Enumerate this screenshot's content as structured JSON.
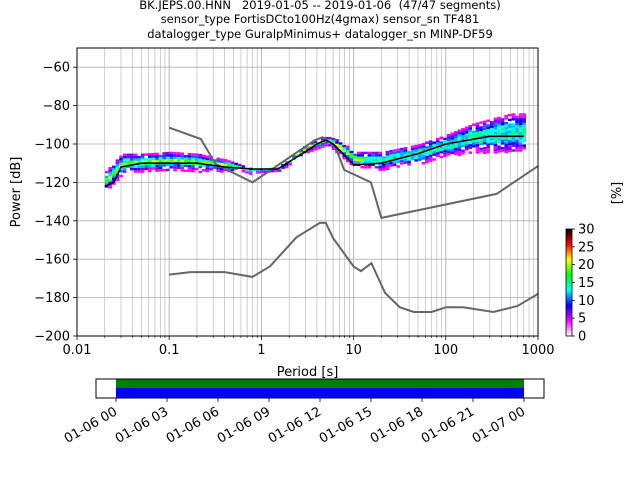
{
  "title_lines": [
    "BK.JEPS.00.HNN   2019-01-05 -- 2019-01-06  (47/47 segments)",
    "sensor_type FortisDCto100Hz(4gmax) sensor_sn TF481",
    "datalogger_type GuralpMinimus+ datalogger_sn MINP-DF59"
  ],
  "chart_data": {
    "type": "heatmap",
    "xlabel": "Period [s]",
    "ylabel": "Power [dB]",
    "x_scale": "log",
    "xlim": [
      0.01,
      1000
    ],
    "ylim": [
      -200,
      -50
    ],
    "x_ticks": [
      0.01,
      0.1,
      1,
      10,
      100,
      1000
    ],
    "x_tick_labels": [
      "0.01",
      "0.1",
      "1",
      "10",
      "100",
      "1000"
    ],
    "y_ticks": [
      -200,
      -180,
      -160,
      -140,
      -120,
      -100,
      -80,
      -60
    ],
    "y_tick_labels": [
      "−200",
      "−180",
      "−160",
      "−140",
      "−120",
      "−100",
      "−80",
      "−60"
    ],
    "grid": true,
    "colorbar": {
      "label": "[%]",
      "range": [
        0,
        30
      ],
      "ticks": [
        0,
        5,
        10,
        15,
        20,
        25,
        30
      ],
      "tick_labels": [
        "0",
        "5",
        "10",
        "15",
        "20",
        "25",
        "30"
      ],
      "colors": [
        "#ffffff",
        "#ff00ff",
        "#0000ff",
        "#00ffff",
        "#00ff00",
        "#ffff00",
        "#ff0000",
        "#000000"
      ]
    },
    "psd_band": [
      {
        "x": 0.02,
        "lo": -124,
        "hi": -114
      },
      {
        "x": 0.03,
        "lo": -116,
        "hi": -105
      },
      {
        "x": 0.05,
        "lo": -114,
        "hi": -105
      },
      {
        "x": 0.1,
        "lo": -114,
        "hi": -104
      },
      {
        "x": 0.2,
        "lo": -114,
        "hi": -105
      },
      {
        "x": 0.4,
        "lo": -114,
        "hi": -108
      },
      {
        "x": 0.8,
        "lo": -115,
        "hi": -113
      },
      {
        "x": 1.5,
        "lo": -114,
        "hi": -112
      },
      {
        "x": 3,
        "lo": -104,
        "hi": -100
      },
      {
        "x": 5,
        "lo": -100,
        "hi": -96
      },
      {
        "x": 7,
        "lo": -106,
        "hi": -98
      },
      {
        "x": 10,
        "lo": -112,
        "hi": -104
      },
      {
        "x": 20,
        "lo": -113,
        "hi": -104
      },
      {
        "x": 50,
        "lo": -110,
        "hi": -100
      },
      {
        "x": 100,
        "lo": -106,
        "hi": -95
      },
      {
        "x": 200,
        "lo": -104,
        "hi": -89
      },
      {
        "x": 500,
        "lo": -104,
        "hi": -84
      },
      {
        "x": 700,
        "lo": -104,
        "hi": -84
      }
    ],
    "median_line": {
      "x": [
        0.02,
        0.025,
        0.03,
        0.05,
        0.1,
        0.2,
        0.4,
        0.8,
        1.5,
        3,
        4,
        5,
        6,
        8,
        10,
        20,
        50,
        100,
        300,
        700
      ],
      "y": [
        -122,
        -120,
        -112,
        -110,
        -110,
        -110,
        -112,
        -113,
        -113,
        -104,
        -100,
        -98,
        -100,
        -106,
        -111,
        -110,
        -105,
        -100,
        -96,
        -96
      ]
    },
    "high_noise_model": {
      "x": [
        0.1,
        0.22,
        0.32,
        0.8,
        3.8,
        4.6,
        6.3,
        7.9,
        15.4,
        20,
        354.8,
        1000
      ],
      "y": [
        -91.5,
        -97.4,
        -110.5,
        -120,
        -98,
        -96.5,
        -101,
        -113.5,
        -120,
        -138.5,
        -126,
        -111.5
      ]
    },
    "low_noise_model": {
      "x": [
        0.1,
        0.17,
        0.4,
        0.8,
        1.24,
        2.4,
        4.3,
        5,
        6,
        10,
        12,
        15.6,
        21.9,
        31.6,
        45,
        70,
        101,
        154,
        328,
        600,
        1000
      ],
      "y": [
        -168,
        -166.7,
        -166.7,
        -169.2,
        -163.7,
        -148.6,
        -141.1,
        -141.1,
        -149,
        -163.8,
        -166.2,
        -162.1,
        -177.5,
        -185,
        -187.5,
        -187.5,
        -185,
        -185,
        -187.5,
        -184.4,
        -178
      ]
    },
    "time_axis": {
      "tick_labels": [
        "01-06 00",
        "01-06 03",
        "01-06 06",
        "01-06 09",
        "01-06 12",
        "01-06 15",
        "01-06 18",
        "01-06 21",
        "01-07 00"
      ],
      "coverage_colors": [
        "#008000",
        "#0000ff"
      ]
    }
  }
}
